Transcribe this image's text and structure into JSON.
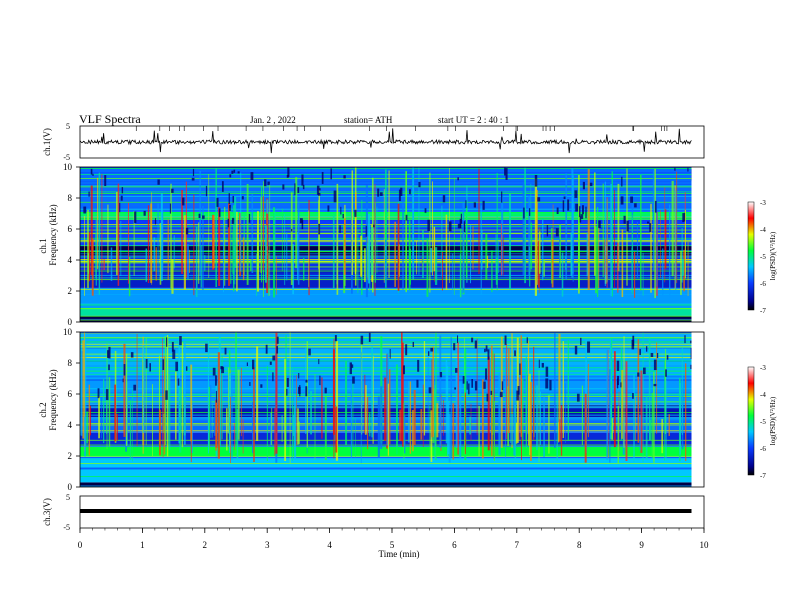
{
  "header": {
    "title": "VLF  Spectra",
    "date": "Jan.  2  , 2022",
    "station": "station= ATH",
    "start": "start  UT  =   2  : 40 : 1"
  },
  "chart_data": [
    {
      "type": "line",
      "ylabel": "ch.1(V)",
      "xlim": [
        0,
        10
      ],
      "ylim": [
        -5,
        5
      ],
      "yticks": [
        "5",
        "-5"
      ],
      "description_values": {
        "baseline_volts": 0,
        "noise_amplitude_volts": 0.6
      }
    },
    {
      "type": "heatmap",
      "ylabel": "Frequency  (kHz)",
      "channel_label": "ch.1",
      "xlim": [
        0,
        10
      ],
      "ylim": [
        0,
        10
      ],
      "yticks": [
        "0",
        "2",
        "4",
        "6",
        "8",
        "10"
      ],
      "colorbar": {
        "label": "log(PSD)(V²/Hz)",
        "range": [
          -7,
          -3
        ],
        "ticks": [
          "-3",
          "-4",
          "-5",
          "-6",
          "-7"
        ]
      },
      "bands_khz": [
        {
          "from": 0,
          "to": 0.4,
          "level": -7
        },
        {
          "from": 0.4,
          "to": 0.9,
          "level": -5.3
        },
        {
          "from": 0.9,
          "to": 2.2,
          "level": -5.8
        },
        {
          "from": 2.2,
          "to": 3.4,
          "level": -6.5
        },
        {
          "from": 3.4,
          "to": 4.3,
          "level": -6.3
        },
        {
          "from": 4.3,
          "to": 4.9,
          "level": -7
        },
        {
          "from": 4.9,
          "to": 6.6,
          "level": -6.2
        },
        {
          "from": 6.6,
          "to": 7.1,
          "level": -5
        },
        {
          "from": 7.1,
          "to": 10,
          "level": -6.0
        }
      ]
    },
    {
      "type": "heatmap",
      "ylabel": "Frequency  (kHz)",
      "channel_label": "ch.2",
      "xlim": [
        0,
        10
      ],
      "ylim": [
        0,
        10
      ],
      "yticks": [
        "0",
        "2",
        "4",
        "6",
        "8",
        "10"
      ],
      "colorbar": {
        "label": "log(PSD)(V²/Hz)",
        "range": [
          -7,
          -3
        ],
        "ticks": [
          "-3",
          "-4",
          "-5",
          "-6",
          "-7"
        ]
      },
      "bands_khz": [
        {
          "from": 0,
          "to": 0.3,
          "level": -7
        },
        {
          "from": 0.3,
          "to": 2.0,
          "level": -5.6
        },
        {
          "from": 2.0,
          "to": 2.6,
          "level": -5.0
        },
        {
          "from": 2.6,
          "to": 3.5,
          "level": -6.4
        },
        {
          "from": 3.5,
          "to": 4.5,
          "level": -6.0
        },
        {
          "from": 4.5,
          "to": 5.3,
          "level": -6.6
        },
        {
          "from": 5.3,
          "to": 7.0,
          "level": -5.8
        },
        {
          "from": 7.0,
          "to": 10,
          "level": -5.7
        }
      ]
    },
    {
      "type": "line",
      "ylabel": "ch.3(V)",
      "xlim": [
        0,
        10
      ],
      "ylim": [
        -5,
        5
      ],
      "yticks": [
        "5",
        "-5"
      ],
      "description_values": {
        "baseline_volts": 0
      }
    }
  ],
  "xaxis": {
    "label": "Time  (min)",
    "ticks": [
      "0",
      "1",
      "2",
      "3",
      "4",
      "5",
      "6",
      "7",
      "8",
      "9",
      "10"
    ],
    "data_end_min": 9.8
  }
}
